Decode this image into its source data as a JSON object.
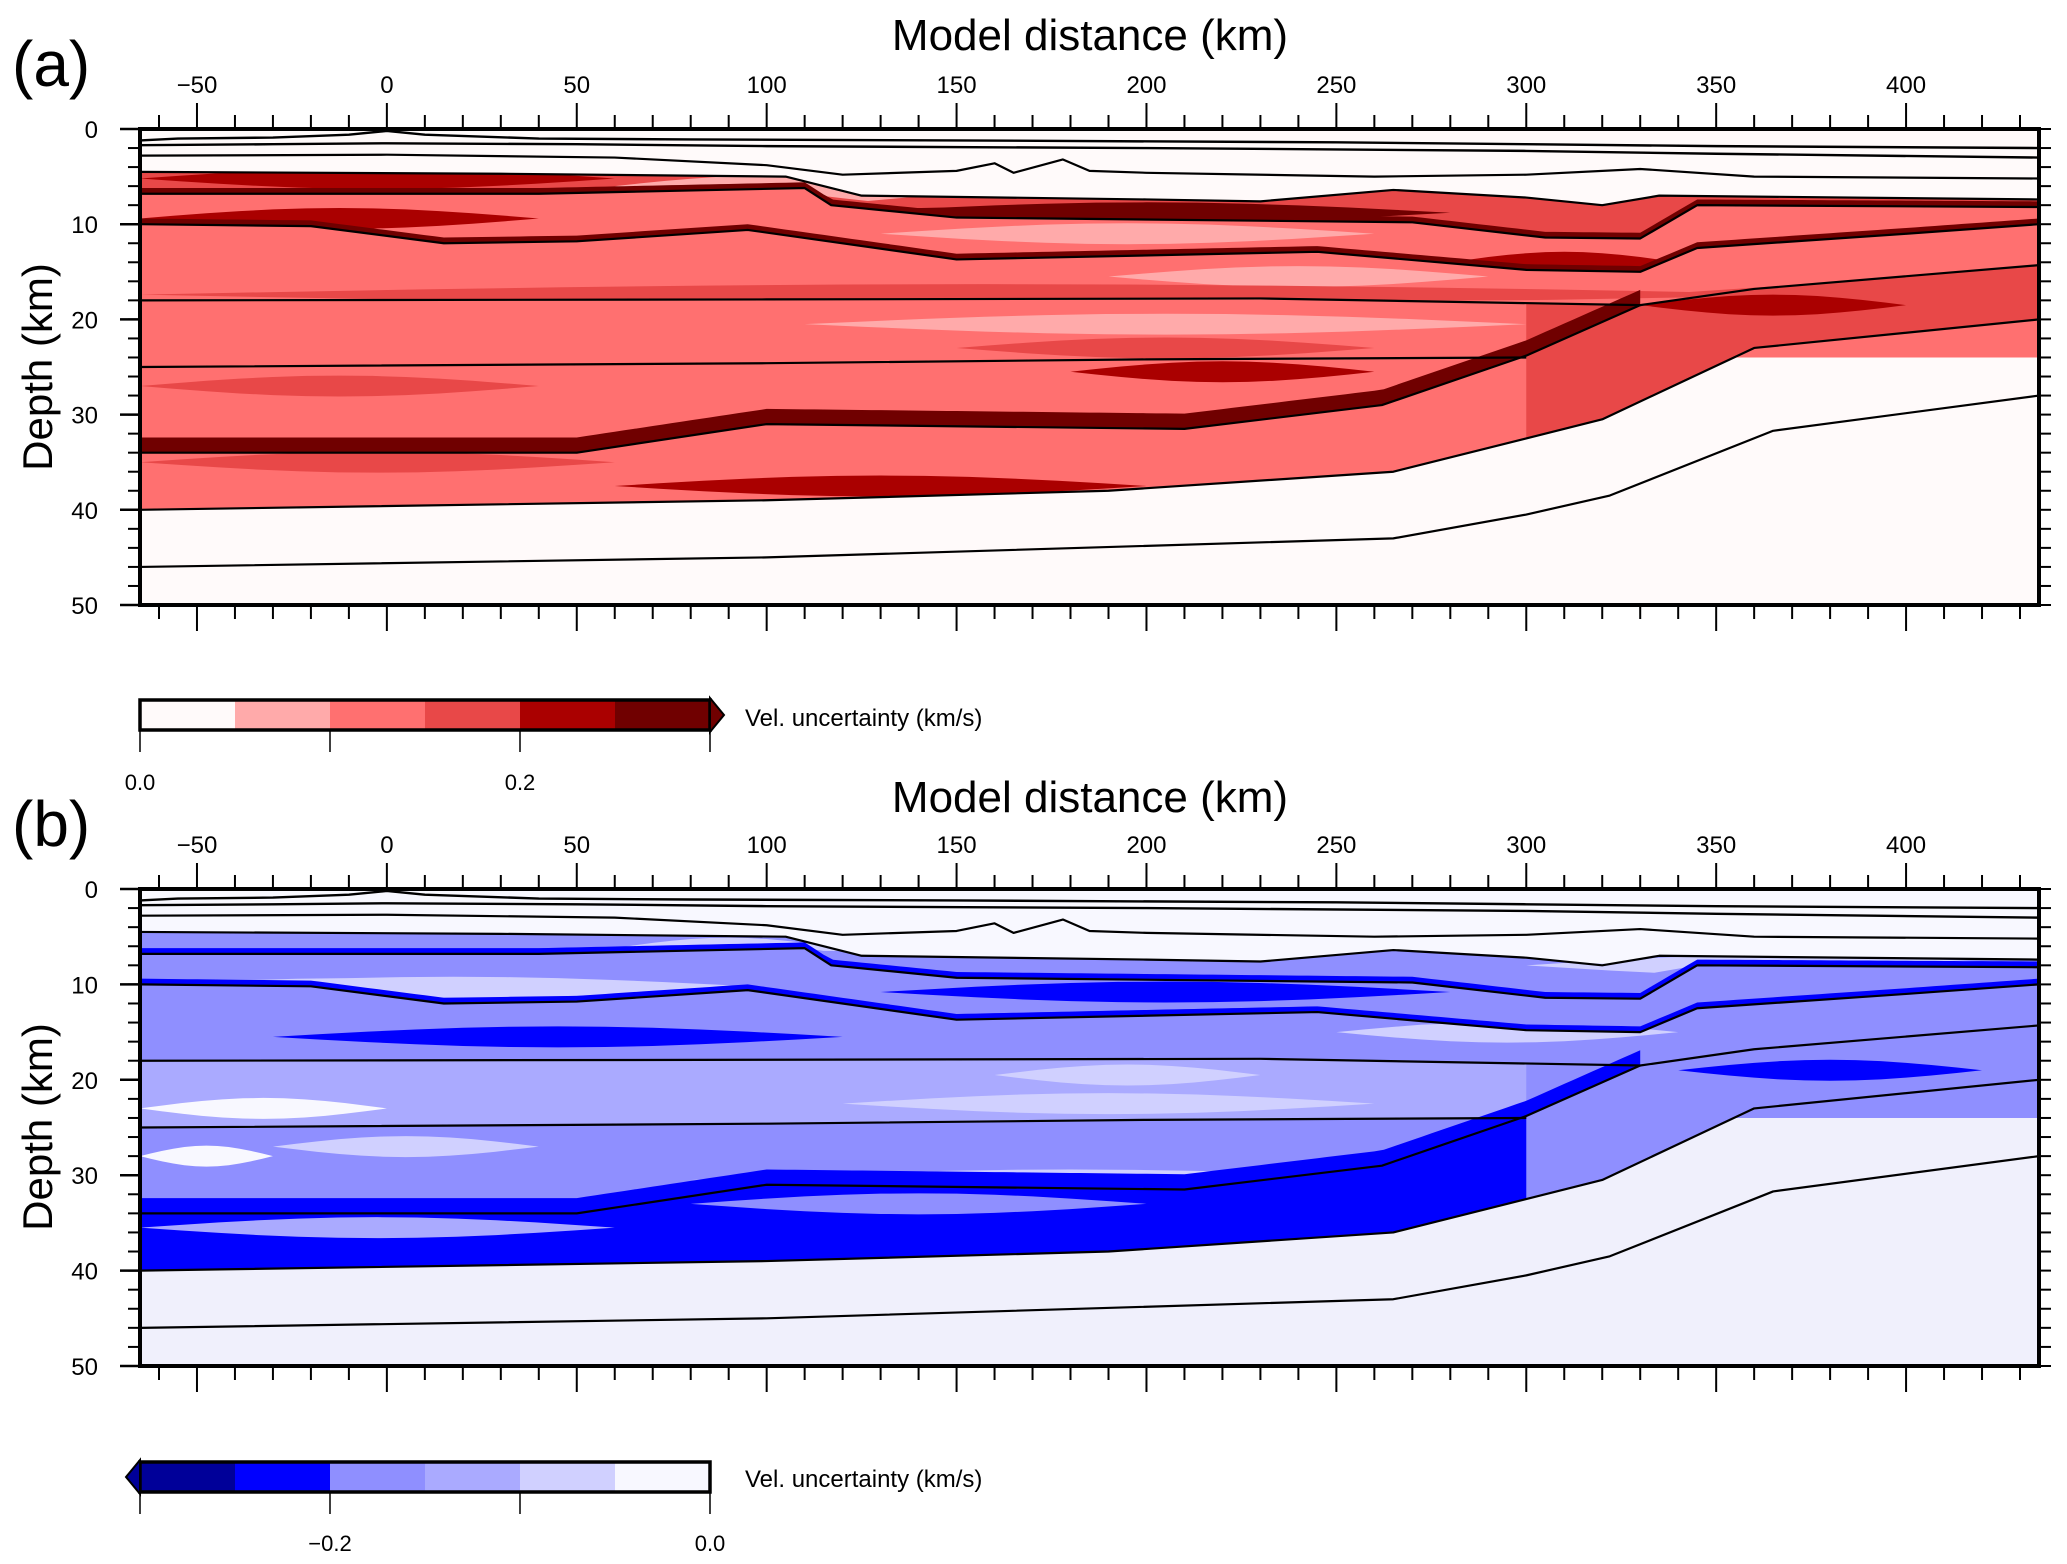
{
  "chart_data": [
    {
      "type": "heatmap",
      "panel_label": "(a)",
      "title": "Model distance (km)",
      "xlabel": "Model distance (km)",
      "ylabel": "Depth (km)",
      "xlim": [
        -65,
        435
      ],
      "ylim": [
        0,
        50
      ],
      "y_inverted": true,
      "x_ticks": [
        -50,
        0,
        50,
        100,
        150,
        200,
        250,
        300,
        350,
        400
      ],
      "x_tick_labels": [
        "−50",
        "0",
        "50",
        "100",
        "150",
        "200",
        "250",
        "300",
        "350",
        "400"
      ],
      "x_minor_step": 10,
      "y_ticks": [
        0,
        10,
        20,
        30,
        40,
        50
      ],
      "y_tick_labels": [
        "0",
        "10",
        "20",
        "30",
        "40",
        "50"
      ],
      "y_minor_step": 2,
      "background_color": "#fffafa",
      "colorbar": {
        "label": "Vel. uncertainty (km/s)",
        "range": [
          0.0,
          0.3
        ],
        "boundaries": [
          0.0,
          0.05,
          0.1,
          0.15,
          0.2,
          0.25,
          0.3
        ],
        "colors": [
          "#fffafa",
          "#ffaaaa",
          "#ff7070",
          "#e84848",
          "#aa0000",
          "#700000"
        ],
        "tick_values": [
          0.0,
          0.1,
          0.2,
          0.3
        ],
        "labeled_ticks": [
          {
            "value": 0.0,
            "label": "0.0"
          },
          {
            "value": 0.2,
            "label": "0.2"
          }
        ],
        "extend": "max"
      },
      "filled_bands": [
        {
          "top": "b4",
          "bottom": "b5",
          "base_level": 3,
          "streaks": [
            {
              "x0": -65,
              "x1": 60,
              "d": 5.2,
              "level": 4
            },
            {
              "x0": 120,
              "x1": 280,
              "d": 8.8,
              "level": 5
            },
            {
              "x0": 60,
              "x1": 140,
              "d": 6.0,
              "level": 1
            }
          ]
        },
        {
          "top": "b5",
          "bottom": "b6",
          "base_level": 2,
          "streaks": [
            {
              "x0": 130,
              "x1": 260,
              "d": 11.0,
              "level": 1
            },
            {
              "x0": -65,
              "x1": 40,
              "d": 9.4,
              "level": 4
            },
            {
              "x0": 280,
              "x1": 340,
              "d": 14.0,
              "level": 4
            }
          ]
        },
        {
          "top": "b6",
          "bottom": "b7",
          "base_level": 2,
          "streaks": [
            {
              "x0": 190,
              "x1": 290,
              "d": 15.5,
              "level": 1
            },
            {
              "x0": -65,
              "x1": 380,
              "d": 17.4,
              "level": 3
            }
          ]
        },
        {
          "top": "b7",
          "bottom": "b8",
          "base_level": 2,
          "streaks": [
            {
              "x0": 110,
              "x1": 300,
              "d": 20.5,
              "level": 1
            },
            {
              "x0": 150,
              "x1": 260,
              "d": 23.0,
              "level": 3
            }
          ]
        },
        {
          "top": "b8",
          "bottom": "b9",
          "base_level": 2,
          "streaks": [
            {
              "x0": -65,
              "x1": 40,
              "d": 27.0,
              "level": 3
            },
            {
              "x0": 180,
              "x1": 260,
              "d": 25.5,
              "level": 4
            }
          ]
        },
        {
          "top": "b9",
          "bottom": "b10",
          "base_level": 2,
          "streaks": [
            {
              "x0": -65,
              "x1": 60,
              "d": 35.0,
              "level": 3
            },
            {
              "x0": 60,
              "x1": 200,
              "d": 37.5,
              "level": 4
            }
          ]
        },
        {
          "top": "b7",
          "bottom": "b10",
          "x_from": 300,
          "base_level": 3,
          "streaks": [
            {
              "x0": 330,
              "x1": 400,
              "d": 18.5,
              "level": 4
            }
          ]
        }
      ],
      "boundaries": {
        "b1": {
          "x": [
            -65,
            -55,
            -30,
            -10,
            0,
            10,
            40,
            80,
            150,
            250,
            300,
            350,
            435
          ],
          "d": [
            1.2,
            1.0,
            0.9,
            0.6,
            0.2,
            0.6,
            1.0,
            1.1,
            1.2,
            1.4,
            1.6,
            1.8,
            2.0
          ]
        },
        "b2": {
          "x": [
            -65,
            -30,
            0,
            50,
            100,
            200,
            300,
            350,
            435
          ],
          "d": [
            1.7,
            1.6,
            1.5,
            1.6,
            1.8,
            2.0,
            2.3,
            2.6,
            3.0
          ]
        },
        "b3": {
          "x": [
            -65,
            0,
            60,
            100,
            120,
            150,
            160,
            165,
            178,
            185,
            200,
            260,
            300,
            330,
            360,
            435
          ],
          "d": [
            2.8,
            2.7,
            3.0,
            3.8,
            4.8,
            4.4,
            3.6,
            4.6,
            3.2,
            4.4,
            4.6,
            5.0,
            4.8,
            4.2,
            5.0,
            5.2
          ]
        },
        "b4": {
          "x": [
            -65,
            30,
            105,
            125,
            200,
            230,
            265,
            300,
            320,
            335,
            435
          ],
          "d": [
            4.5,
            4.7,
            5.0,
            7.0,
            7.4,
            7.6,
            6.4,
            7.2,
            8.0,
            7.0,
            7.4
          ]
        },
        "b5": {
          "x": [
            -65,
            40,
            110,
            117,
            150,
            270,
            305,
            330,
            345,
            435
          ],
          "d": [
            6.8,
            6.8,
            6.2,
            8.0,
            9.3,
            9.8,
            11.4,
            11.5,
            8.0,
            8.2
          ]
        },
        "b6": {
          "x": [
            -65,
            -20,
            15,
            50,
            95,
            150,
            245,
            300,
            330,
            345,
            400,
            435
          ],
          "d": [
            10.0,
            10.2,
            12.0,
            11.8,
            10.6,
            13.7,
            12.9,
            14.8,
            15.0,
            12.5,
            11.0,
            10.0
          ]
        },
        "b7": {
          "x": [
            -65,
            100,
            230,
            330,
            360,
            435
          ],
          "d": [
            18.0,
            17.9,
            17.8,
            18.5,
            16.8,
            14.3
          ]
        },
        "b8": {
          "x": [
            -65,
            100,
            200,
            300
          ],
          "d": [
            25.0,
            24.6,
            24.2,
            24.0
          ]
        },
        "b9": {
          "x": [
            -65,
            50,
            100,
            210,
            262,
            300,
            330
          ],
          "d": [
            34.0,
            34.0,
            31.0,
            31.5,
            29.0,
            23.8,
            18.5
          ]
        },
        "b10": {
          "x": [
            -65,
            100,
            190,
            265,
            320,
            360,
            435
          ],
          "d": [
            40.0,
            39.0,
            38.0,
            36.0,
            30.5,
            23.0,
            20.0
          ]
        },
        "b11": {
          "x": [
            -65,
            100,
            265,
            300,
            322,
            365,
            435
          ],
          "d": [
            46.0,
            45.0,
            43.0,
            40.5,
            38.5,
            31.7,
            28.0
          ]
        }
      }
    },
    {
      "type": "heatmap",
      "panel_label": "(b)",
      "title": "Model distance (km)",
      "xlabel": "Model distance (km)",
      "ylabel": "Depth (km)",
      "xlim": [
        -65,
        435
      ],
      "ylim": [
        0,
        50
      ],
      "y_inverted": true,
      "x_ticks": [
        -50,
        0,
        50,
        100,
        150,
        200,
        250,
        300,
        350,
        400
      ],
      "x_tick_labels": [
        "−50",
        "0",
        "50",
        "100",
        "150",
        "200",
        "250",
        "300",
        "350",
        "400"
      ],
      "x_minor_step": 10,
      "y_ticks": [
        0,
        10,
        20,
        30,
        40,
        50
      ],
      "y_tick_labels": [
        "0",
        "10",
        "20",
        "30",
        "40",
        "50"
      ],
      "y_minor_step": 2,
      "background_color": "#f8f8ff",
      "deep_background_color": "#f0f0fc",
      "colorbar": {
        "label": "Vel. uncertainty (km/s)",
        "range": [
          -0.3,
          0.0
        ],
        "boundaries": [
          -0.3,
          -0.25,
          -0.2,
          -0.15,
          -0.1,
          -0.05,
          0.0
        ],
        "colors": [
          "#000099",
          "#0000ff",
          "#8f8fff",
          "#aaaaff",
          "#d0d0ff",
          "#f8f8ff"
        ],
        "tick_values": [
          -0.3,
          -0.2,
          -0.1,
          0.0
        ],
        "labeled_ticks": [
          {
            "value": -0.2,
            "label": "−0.2"
          },
          {
            "value": 0.0,
            "label": "0.0"
          }
        ],
        "extend": "min"
      },
      "filled_bands": [
        {
          "top": "b4",
          "bottom": "b5",
          "base_level": 3,
          "streaks": [
            {
              "x0": 60,
              "x1": 120,
              "d": 6.2,
              "level": 1
            },
            {
              "x0": 300,
              "x1": 435,
              "d": 8.0,
              "level": 1
            }
          ]
        },
        {
          "top": "b5",
          "bottom": "b6",
          "base_level": 3,
          "streaks": [
            {
              "x0": 130,
              "x1": 280,
              "d": 10.8,
              "level": 4
            },
            {
              "x0": -65,
              "x1": 100,
              "d": 10.3,
              "level": 1
            }
          ]
        },
        {
          "top": "b6",
          "bottom": "b7",
          "base_level": 3,
          "streaks": [
            {
              "x0": -30,
              "x1": 120,
              "d": 15.5,
              "level": 4
            },
            {
              "x0": 250,
              "x1": 340,
              "d": 15.0,
              "level": 1
            }
          ]
        },
        {
          "top": "b7",
          "bottom": "b8",
          "base_level": 2,
          "streaks": [
            {
              "x0": 160,
              "x1": 230,
              "d": 19.5,
              "level": 1
            },
            {
              "x0": 120,
              "x1": 260,
              "d": 22.5,
              "level": 1
            },
            {
              "x0": -65,
              "x1": 0,
              "d": 23.0,
              "level": 0
            }
          ]
        },
        {
          "top": "b8",
          "bottom": "b9",
          "base_level": 3,
          "streaks": [
            {
              "x0": -30,
              "x1": 40,
              "d": 27.0,
              "level": 1
            },
            {
              "x0": 80,
              "x1": 280,
              "d": 30.5,
              "level": 1
            },
            {
              "x0": -65,
              "x1": -30,
              "d": 28.0,
              "level": 0
            }
          ]
        },
        {
          "top": "b9",
          "bottom": "b10",
          "base_level": 4,
          "streaks": [
            {
              "x0": -65,
              "x1": 60,
              "d": 35.5,
              "level": 2
            },
            {
              "x0": 80,
              "x1": 200,
              "d": 33.0,
              "level": 3
            }
          ]
        },
        {
          "top": "b7",
          "bottom": "b10",
          "x_from": 300,
          "base_level": 3,
          "streaks": [
            {
              "x0": 340,
              "x1": 420,
              "d": 19.0,
              "level": 4
            }
          ]
        }
      ],
      "boundaries_ref": "same as panel (a)"
    }
  ]
}
